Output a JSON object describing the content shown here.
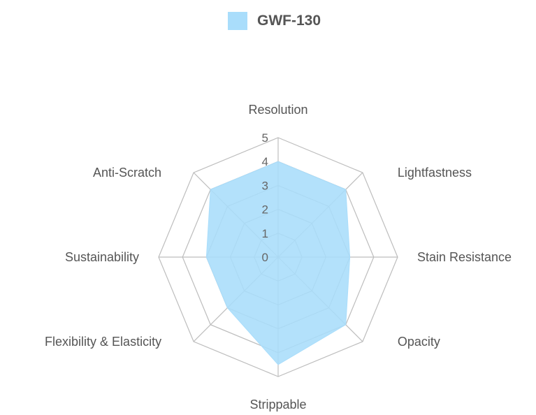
{
  "chart_data": {
    "type": "radar",
    "axes": [
      "Resolution",
      "Lightfastness",
      "Stain Resistance",
      "Opacity",
      "Strippable",
      "Flexibility & Elasticity",
      "Sustainability",
      "Anti-Scratch"
    ],
    "ticks": [
      "0",
      "1",
      "2",
      "3",
      "4",
      "5"
    ],
    "range": [
      0,
      5
    ],
    "series": [
      {
        "name": "GWF-130",
        "values": [
          4,
          4,
          3,
          4,
          4.5,
          3,
          3,
          4
        ],
        "fill": "#a9ddfb"
      }
    ],
    "legend_position": "top-center",
    "grid": true
  }
}
